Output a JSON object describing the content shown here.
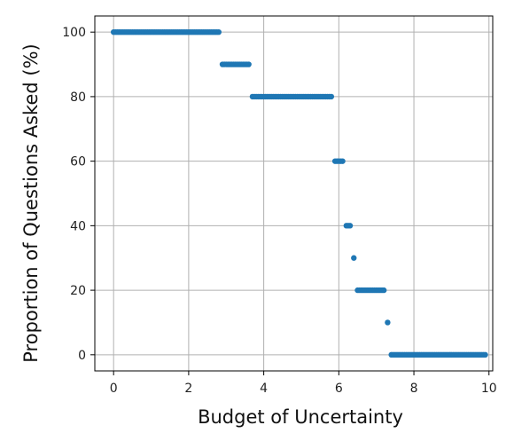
{
  "chart_data": {
    "type": "scatter",
    "xlabel": "Budget of Uncertainty",
    "ylabel": "Proportion of Questions Asked (%)",
    "xlim": [
      -0.5,
      10.1
    ],
    "ylim": [
      -5,
      105
    ],
    "grid": true,
    "marker_color": "#1f77b4",
    "x_ticks": [
      0,
      2,
      4,
      6,
      8,
      10
    ],
    "y_ticks": [
      0,
      20,
      40,
      60,
      80,
      100
    ],
    "x_tick_labels": [
      "0",
      "2",
      "4",
      "6",
      "8",
      "10"
    ],
    "y_tick_labels": [
      "0",
      "20",
      "40",
      "60",
      "80",
      "100"
    ],
    "segments": [
      {
        "x_start": 0.0,
        "x_end": 2.8,
        "y": 100
      },
      {
        "x_start": 2.9,
        "x_end": 3.6,
        "y": 90
      },
      {
        "x_start": 3.7,
        "x_end": 5.8,
        "y": 80
      },
      {
        "x_start": 5.9,
        "x_end": 6.1,
        "y": 60
      },
      {
        "x_start": 6.2,
        "x_end": 6.3,
        "y": 40
      },
      {
        "x_start": 6.4,
        "x_end": 6.4,
        "y": 30
      },
      {
        "x_start": 6.5,
        "x_end": 7.2,
        "y": 20
      },
      {
        "x_start": 7.3,
        "x_end": 7.3,
        "y": 10
      },
      {
        "x_start": 7.4,
        "x_end": 9.9,
        "y": 0
      }
    ],
    "x_step": 0.05
  }
}
